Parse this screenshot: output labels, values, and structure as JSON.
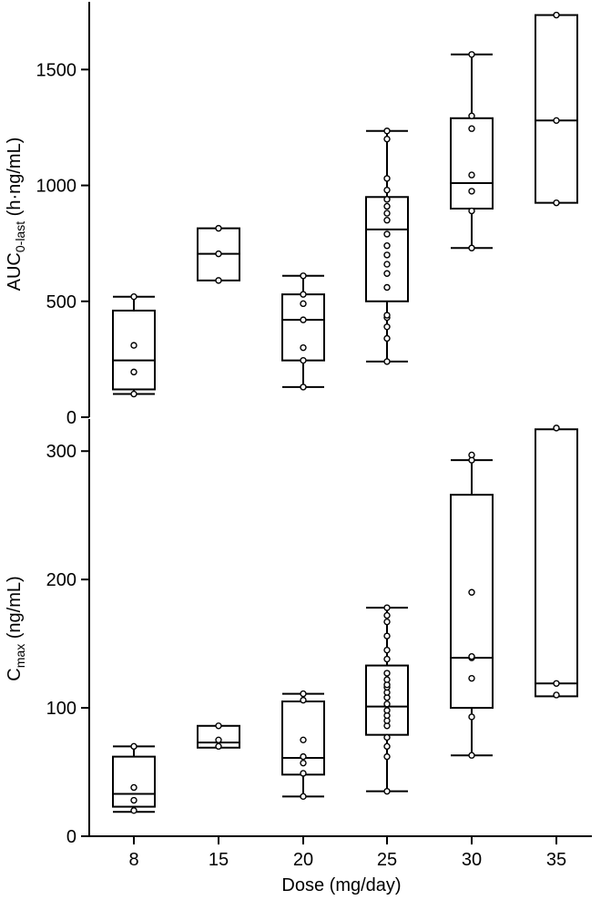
{
  "chart_data": [
    {
      "type": "box",
      "ylabel_main": "AUC",
      "ylabel_sub": "0-last",
      "ylabel_units": " (h·ng/mL)",
      "ylim": [
        0,
        1800
      ],
      "yticks": [
        "0",
        "500",
        "1000",
        "1500"
      ],
      "ytick_values": [
        0,
        500,
        1000,
        1500
      ],
      "categories": [
        "8",
        "15",
        "20",
        "25",
        "30",
        "35"
      ],
      "boxes": [
        {
          "q1": 120,
          "median": 245,
          "q3": 460,
          "whisker_low": 100,
          "whisker_high": 520,
          "points": [
            100,
            195,
            310,
            520
          ]
        },
        {
          "q1": 590,
          "median": 705,
          "q3": 815,
          "whisker_low": 590,
          "whisker_high": 815,
          "points": [
            590,
            705,
            815
          ]
        },
        {
          "q1": 245,
          "median": 420,
          "q3": 530,
          "whisker_low": 130,
          "whisker_high": 610,
          "points": [
            130,
            245,
            300,
            420,
            490,
            530,
            610
          ]
        },
        {
          "q1": 500,
          "median": 810,
          "q3": 950,
          "whisker_low": 240,
          "whisker_high": 1235,
          "points": [
            240,
            340,
            390,
            430,
            440,
            560,
            620,
            660,
            700,
            740,
            790,
            850,
            880,
            910,
            940,
            980,
            1030,
            1200,
            1235
          ]
        },
        {
          "q1": 900,
          "median": 1010,
          "q3": 1290,
          "whisker_low": 730,
          "whisker_high": 1565,
          "points": [
            730,
            890,
            975,
            1045,
            1245,
            1300,
            1565
          ]
        },
        {
          "q1": 925,
          "median": 1280,
          "q3": 1735,
          "whisker_low": 925,
          "whisker_high": 1735,
          "points": [
            925,
            1280,
            1735
          ]
        }
      ]
    },
    {
      "type": "box",
      "ylabel_main": "C",
      "ylabel_sub": "max",
      "ylabel_units": " (ng/mL)",
      "ylim": [
        0,
        325
      ],
      "yticks": [
        "0",
        "100",
        "200",
        "300"
      ],
      "ytick_values": [
        0,
        100,
        200,
        300
      ],
      "categories": [
        "8",
        "15",
        "20",
        "25",
        "30",
        "35"
      ],
      "xlabel": "Dose (mg/day)",
      "boxes": [
        {
          "q1": 23,
          "median": 33,
          "q3": 62,
          "whisker_low": 19,
          "whisker_high": 70,
          "points": [
            20,
            28,
            38,
            70
          ]
        },
        {
          "q1": 69,
          "median": 73,
          "q3": 86,
          "whisker_low": 69,
          "whisker_high": 86,
          "points": [
            70,
            75,
            86
          ]
        },
        {
          "q1": 48,
          "median": 61,
          "q3": 105,
          "whisker_low": 31,
          "whisker_high": 111,
          "points": [
            31,
            49,
            57,
            62,
            75,
            106,
            111
          ]
        },
        {
          "q1": 79,
          "median": 101,
          "q3": 133,
          "whisker_low": 35,
          "whisker_high": 178,
          "points": [
            35,
            62,
            70,
            77,
            86,
            90,
            94,
            98,
            103,
            108,
            112,
            116,
            118,
            122,
            127,
            138,
            145,
            156,
            167,
            172,
            178
          ]
        },
        {
          "q1": 100,
          "median": 139,
          "q3": 266,
          "whisker_low": 63,
          "whisker_high": 293,
          "points": [
            63,
            93,
            123,
            139,
            140,
            190,
            293,
            297
          ]
        },
        {
          "q1": 109,
          "median": 119,
          "q3": 317,
          "whisker_low": 109,
          "whisker_high": 317,
          "points": [
            110,
            119,
            318
          ]
        }
      ]
    }
  ]
}
